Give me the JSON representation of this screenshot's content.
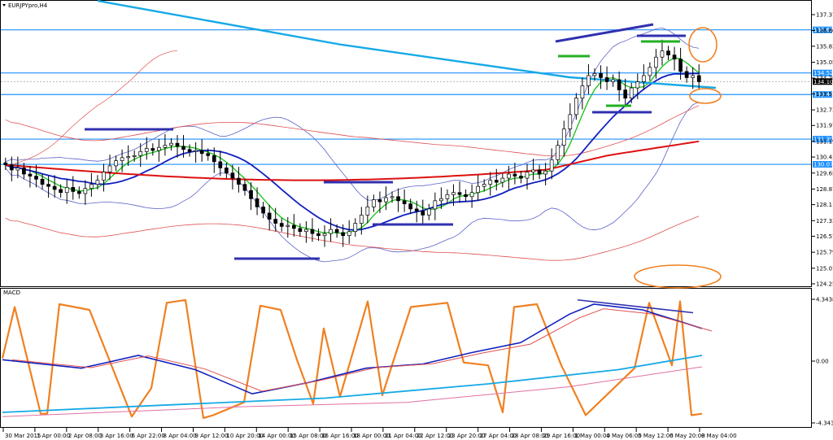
{
  "chart_data": {
    "type": "candlestick",
    "symbol_label": "EURJPYpro,H4",
    "indicator_label": "MACD",
    "price_axis": {
      "min": 124.25,
      "max": 137.37,
      "ticks": [
        "137.370",
        "136.600",
        "135.830",
        "135.050",
        "134.280",
        "133.510",
        "132.730",
        "131.970",
        "131.190",
        "130.430",
        "129.650",
        "128.870",
        "128.110",
        "127.330",
        "126.570",
        "125.790",
        "125.010",
        "124.250"
      ]
    },
    "horizontal_levels": [
      {
        "value": 136.629,
        "label": "136.629"
      },
      {
        "value": 134.528,
        "label": "134.528"
      },
      {
        "value": 133.477,
        "label": "133.477"
      },
      {
        "value": 131.303,
        "label": "131.303"
      },
      {
        "value": 130.075,
        "label": "130.075"
      }
    ],
    "current_price": {
      "value": 134.109,
      "label": "134.109"
    },
    "macd_axis": {
      "min": -4.3438,
      "max": 4.3438,
      "ticks": [
        "4.3438",
        "0.00",
        "-4.3438"
      ]
    },
    "x_labels": [
      "30 Mar 2015",
      "1 Apr 00:00",
      "2 Apr 08:00",
      "3 Apr 16:00",
      "6 Apr 22:00",
      "8 Apr 04:00",
      "9 Apr 12:00",
      "10 Apr 20:00",
      "14 Apr 00:00",
      "15 Apr 08:00",
      "16 Apr 16:00",
      "18 Apr 00:00",
      "21 Apr 04:00",
      "22 Apr 12:00",
      "23 Apr 20:00",
      "27 Apr 04:00",
      "28 Apr 08:00",
      "29 Apr 16:00",
      "1 May 00:00",
      "4 May 06:00",
      "5 May 12:00",
      "6 May 20:00",
      "8 May 04:00"
    ],
    "close": [
      130.05,
      129.8,
      129.9,
      129.6,
      129.5,
      129.35,
      129.1,
      129.0,
      128.85,
      128.7,
      128.95,
      128.75,
      128.65,
      128.9,
      129.1,
      129.3,
      129.7,
      130.0,
      130.25,
      130.4,
      130.45,
      130.5,
      130.7,
      130.85,
      130.75,
      130.9,
      131.0,
      131.1,
      130.95,
      130.8,
      130.7,
      130.75,
      130.6,
      130.5,
      130.2,
      129.9,
      129.65,
      129.4,
      129.1,
      128.8,
      128.4,
      128.0,
      127.7,
      127.4,
      127.2,
      127.05,
      127.1,
      126.95,
      126.8,
      126.9,
      126.7,
      126.6,
      126.7,
      126.9,
      126.75,
      126.6,
      126.8,
      127.2,
      127.6,
      128.0,
      128.35,
      128.25,
      128.45,
      128.5,
      128.3,
      128.15,
      127.9,
      127.8,
      127.6,
      127.9,
      128.3,
      128.4,
      128.6,
      128.7,
      128.6,
      128.5,
      128.7,
      129.0,
      129.1,
      129.3,
      129.2,
      129.4,
      129.6,
      129.5,
      129.4,
      129.7,
      129.8,
      129.6,
      129.75,
      130.3,
      131.0,
      131.8,
      132.5,
      133.3,
      133.9,
      134.4,
      134.5,
      134.3,
      134.1,
      134.2,
      133.7,
      133.3,
      133.8,
      134.1,
      134.4,
      134.8,
      135.3,
      135.6,
      135.4,
      135.2,
      134.6,
      134.3,
      134.4,
      134.1
    ]
  }
}
